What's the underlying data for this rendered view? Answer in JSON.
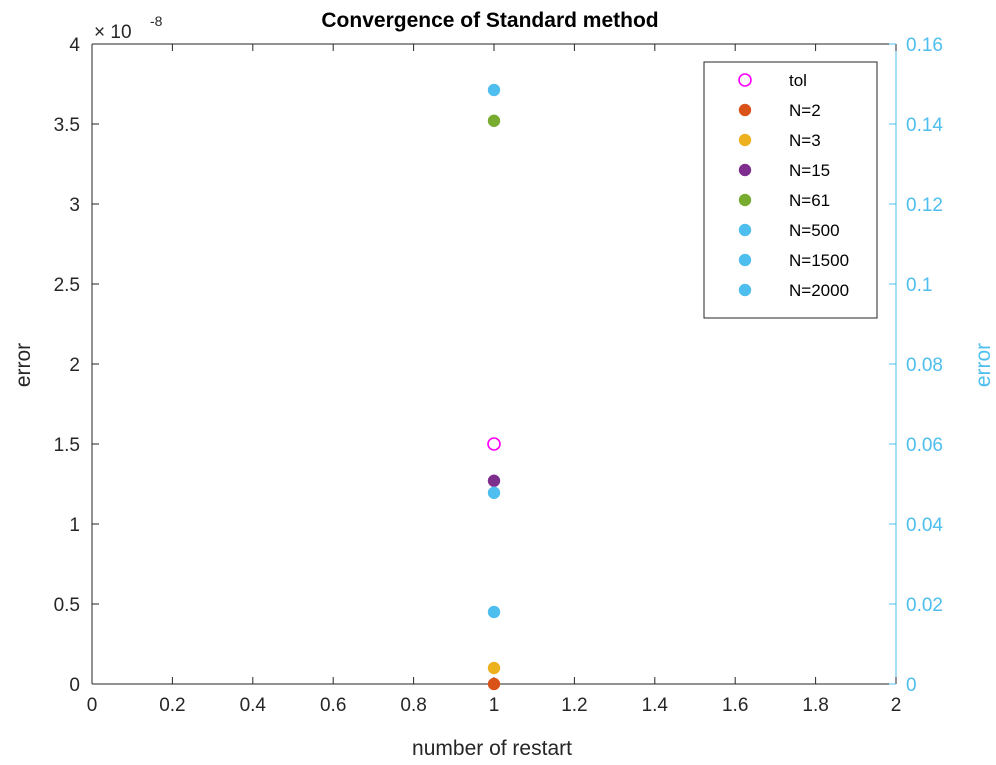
{
  "chart_data": {
    "type": "scatter",
    "title": "Convergence of Standard method",
    "xlabel": "number of restart",
    "ylabel_left": "error",
    "ylabel_right": "error",
    "xlim": [
      0,
      2
    ],
    "ylim_left": [
      0,
      4e-08
    ],
    "ylim_right": [
      0,
      0.16
    ],
    "x_ticks": [
      "0",
      "0.2",
      "0.4",
      "0.6",
      "0.8",
      "1",
      "1.2",
      "1.4",
      "1.6",
      "1.8",
      "2"
    ],
    "y_left_ticks": [
      "0",
      "0.5",
      "1",
      "1.5",
      "2",
      "2.5",
      "3",
      "3.5",
      "4"
    ],
    "y_left_exponent_base": "× 10",
    "y_left_exponent": "-8",
    "y_right_ticks": [
      "0",
      "0.02",
      "0.04",
      "0.06",
      "0.08",
      "0.1",
      "0.12",
      "0.14",
      "0.16"
    ],
    "grid": false,
    "legend_position": "top-right",
    "colors": {
      "axis": "#262626",
      "right_axis": "#4dbeee",
      "tol": "#ff00ff",
      "N2": "#d95319",
      "N3": "#edb120",
      "N15": "#7e2f8e",
      "N61": "#77ac30",
      "N500": "#4dbeee",
      "N1500": "#4dbeee",
      "N2000": "#4dbeee"
    },
    "series": [
      {
        "name": "tol",
        "marker": "open-circle",
        "color": "#ff00ff",
        "axis": "left",
        "x": [
          1
        ],
        "y": [
          1.5e-08
        ]
      },
      {
        "name": "N=2",
        "marker": "filled-circle",
        "color": "#d95319",
        "axis": "left",
        "x": [
          1
        ],
        "y": [
          0
        ]
      },
      {
        "name": "N=3",
        "marker": "filled-circle",
        "color": "#edb120",
        "axis": "left",
        "x": [
          1
        ],
        "y": [
          1e-09
        ]
      },
      {
        "name": "N=15",
        "marker": "filled-circle",
        "color": "#7e2f8e",
        "axis": "left",
        "x": [
          1
        ],
        "y": [
          1.27e-08
        ]
      },
      {
        "name": "N=61",
        "marker": "filled-circle",
        "color": "#77ac30",
        "axis": "left",
        "x": [
          1
        ],
        "y": [
          3.52e-08
        ]
      },
      {
        "name": "N=500",
        "marker": "filled-circle",
        "color": "#4dbeee",
        "axis": "right",
        "x": [
          1
        ],
        "y": [
          0.018
        ]
      },
      {
        "name": "N=1500",
        "marker": "filled-circle",
        "color": "#4dbeee",
        "axis": "right",
        "x": [
          1
        ],
        "y": [
          0.0478
        ]
      },
      {
        "name": "N=2000",
        "marker": "filled-circle",
        "color": "#4dbeee",
        "axis": "right",
        "x": [
          1
        ],
        "y": [
          0.1485
        ]
      }
    ]
  }
}
